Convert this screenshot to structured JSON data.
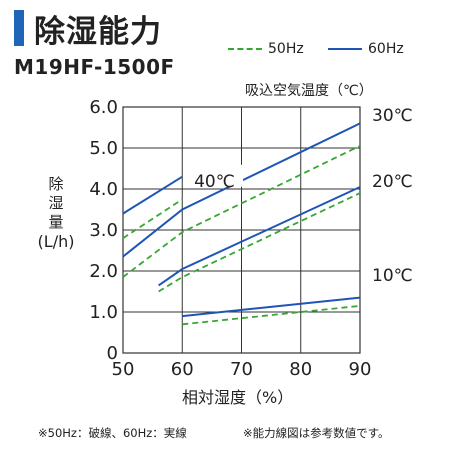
{
  "header": {
    "title": "除湿能力",
    "model": "M19HF-1500F",
    "accent_color": "#1f66b8"
  },
  "legend": {
    "hz50": "50Hz",
    "hz60": "60Hz",
    "hz50_style": "dashed-green",
    "hz60_style": "solid-blue"
  },
  "footer": {
    "note_left": "※50Hz：破線、60Hz：実線",
    "note_right": "※能力線図は参考数値です。"
  },
  "chart_data": {
    "type": "line",
    "title": "除湿能力",
    "xlabel": "相対湿度（%）",
    "ylabel": "除湿量(L/h)",
    "ylabel_lines": [
      "除",
      "湿",
      "量",
      "(L/h)"
    ],
    "xlim": [
      50,
      90
    ],
    "ylim": [
      0,
      6.0
    ],
    "x_ticks": [
      "50",
      "60",
      "70",
      "80",
      "90"
    ],
    "y_ticks": [
      "0",
      "1.0",
      "2.0",
      "3.0",
      "4.0",
      "5.0",
      "6.0"
    ],
    "grid": true,
    "intake_label": "吸込空気温度（℃）",
    "temp_labels": [
      {
        "text": "30℃",
        "y": 5.8
      },
      {
        "text": "20℃",
        "y": 4.2
      },
      {
        "text": "10℃",
        "y": 1.9
      },
      {
        "text": "40℃",
        "y": 4.2,
        "x": 62
      }
    ],
    "colors": {
      "hz50": "#36a832",
      "hz60": "#1f55b5"
    },
    "series": [
      {
        "freq": "60Hz",
        "temp": "40℃",
        "x": [
          50,
          60
        ],
        "values": [
          3.4,
          4.3
        ]
      },
      {
        "freq": "50Hz",
        "temp": "40℃",
        "x": [
          50,
          60
        ],
        "values": [
          2.8,
          3.75
        ]
      },
      {
        "freq": "60Hz",
        "temp": "30℃",
        "x": [
          50,
          60,
          90
        ],
        "values": [
          2.35,
          3.5,
          5.6
        ]
      },
      {
        "freq": "50Hz",
        "temp": "30℃",
        "x": [
          50,
          60,
          90
        ],
        "values": [
          1.85,
          2.95,
          5.05
        ]
      },
      {
        "freq": "60Hz",
        "temp": "20℃",
        "x": [
          56,
          60,
          90
        ],
        "values": [
          1.65,
          2.05,
          4.05
        ]
      },
      {
        "freq": "50Hz",
        "temp": "20℃",
        "x": [
          56,
          60,
          90
        ],
        "values": [
          1.5,
          1.85,
          3.9
        ]
      },
      {
        "freq": "60Hz",
        "temp": "10℃",
        "x": [
          60,
          90
        ],
        "values": [
          0.9,
          1.35
        ]
      },
      {
        "freq": "50Hz",
        "temp": "10℃",
        "x": [
          60,
          90
        ],
        "values": [
          0.7,
          1.15
        ]
      }
    ]
  }
}
